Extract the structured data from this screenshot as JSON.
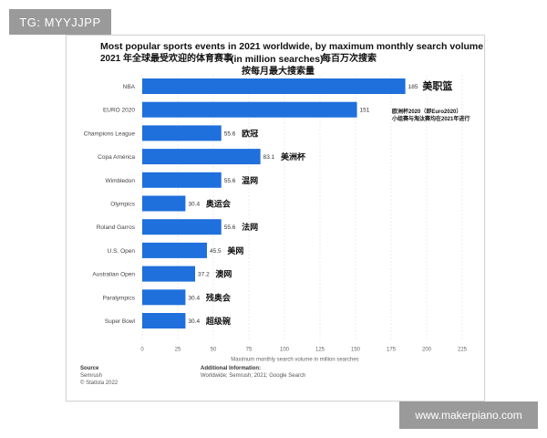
{
  "badges": {
    "top_left": "TG: MYYJJPP",
    "bottom_right": "www.makerpiano.com"
  },
  "chart_data": {
    "type": "bar",
    "orientation": "horizontal",
    "title": "Most popular sports events in 2021 worldwide, by maximum monthly search volume",
    "subtitle_cn": "2021 年全球最受欢迎的体育赛事",
    "subtitle_unit": "(in million searches)",
    "subtitle_cn2": "每百万次搜索",
    "subtitle_cn3": "按每月最大搜索量",
    "categories": [
      "NBA",
      "EURO 2020",
      "Champions League",
      "Copa América",
      "Wimbledon",
      "Olympics",
      "Roland Garros",
      "U.S. Open",
      "Australian Open",
      "Paralympics",
      "Super Bowl"
    ],
    "values": [
      185,
      151,
      55.6,
      83.1,
      55.6,
      30.4,
      55.6,
      45.5,
      37.2,
      30.4,
      30.4
    ],
    "value_labels": [
      "185",
      "151",
      "55.6",
      "83.1",
      "55.6",
      "30.4",
      "55.6",
      "45.5",
      "37.2",
      "30.4",
      "30.4"
    ],
    "annotations_cn": [
      "美职篮",
      "",
      "欧冠",
      "美洲杯",
      "温网",
      "奥运会",
      "法网",
      "美网",
      "澳网",
      "残奥会",
      "超级碗"
    ],
    "euro_note_line1": "欧洲杯2020（即Euro2020）",
    "euro_note_line2": "小组赛与淘汰赛均在2021年进行",
    "xlabel": "Maximum monthly search volume in million searches",
    "ylabel": "",
    "xlim": [
      0,
      225
    ],
    "xticks": [
      "0",
      "25",
      "50",
      "75",
      "100",
      "125",
      "150",
      "175",
      "200",
      "225"
    ],
    "grid": "vertical",
    "bar_color": "#1f6fdc"
  },
  "footer": {
    "source_title": "Source",
    "source_line1": "Semrush",
    "source_line2": "© Statista 2022",
    "info_title": "Additional Information:",
    "info_text": "Worldwide; Semrush; 2021; Google Search"
  }
}
